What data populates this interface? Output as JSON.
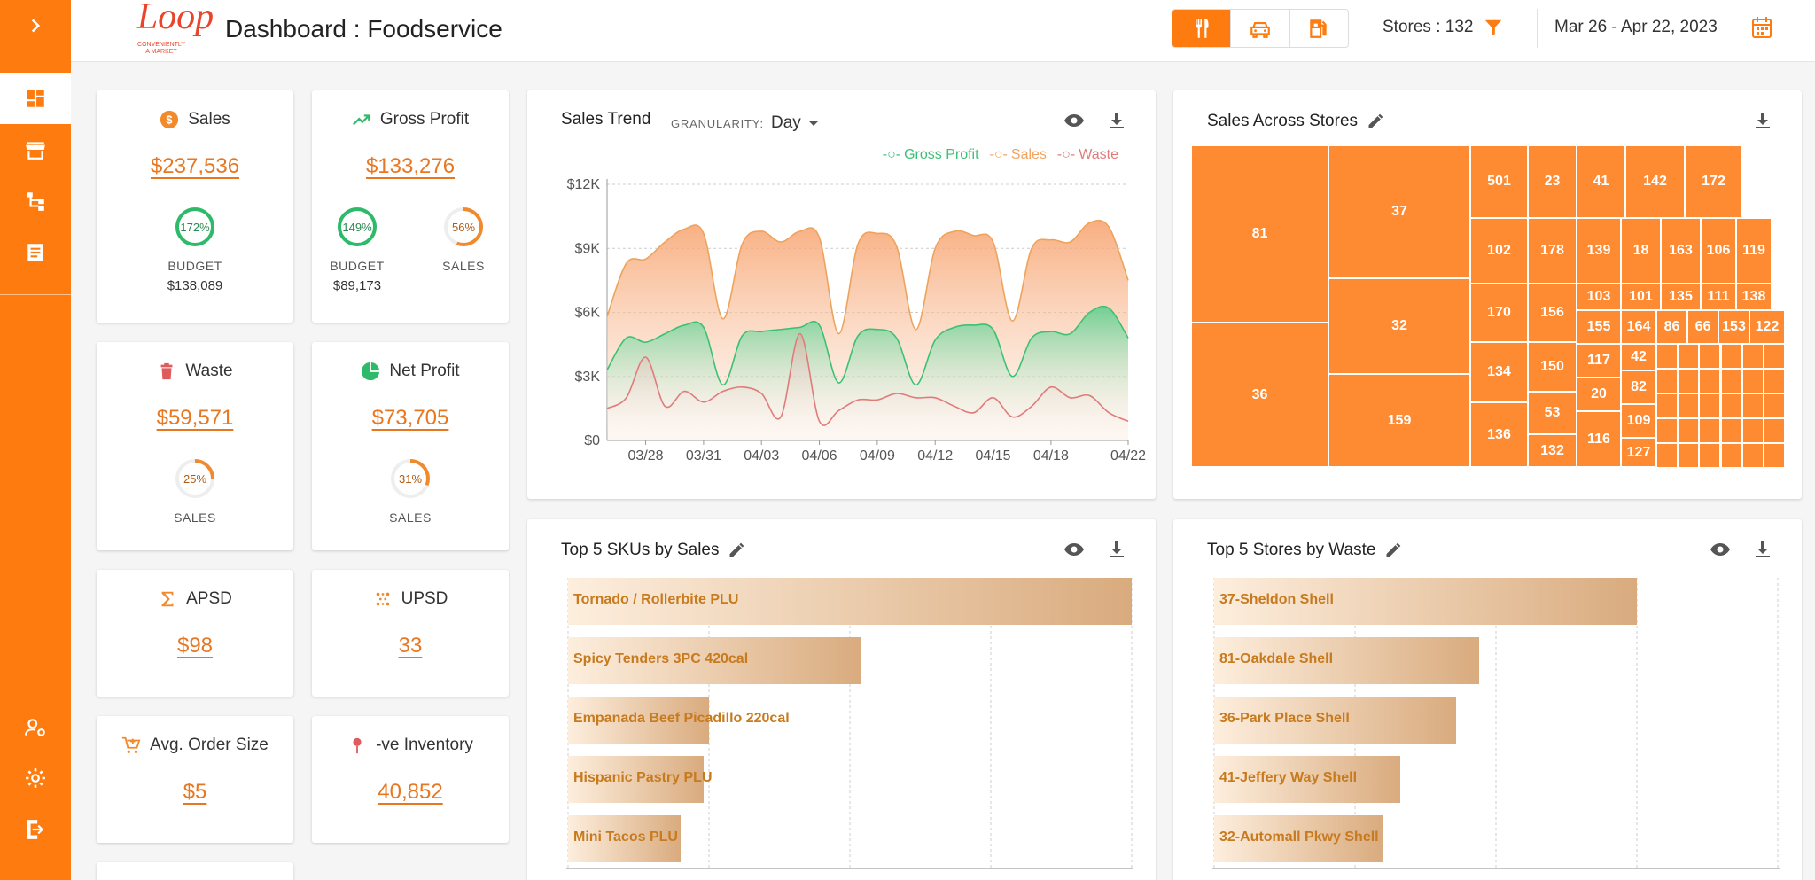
{
  "app": {
    "title": "Dashboard : Foodservice",
    "logo_text": "Loop",
    "logo_tagline_1": "CONVENIENTLY",
    "logo_tagline_2": "A MARKET"
  },
  "topbar": {
    "stores_label": "Stores : 132",
    "date_range": "Mar 26 - Apr 22, 2023",
    "modes": [
      "fork-knife-icon",
      "car-icon",
      "fuel-icon"
    ],
    "active_mode": "fork-knife-icon"
  },
  "colors": {
    "accent": "#fe7c0f",
    "value_orange": "#e87722",
    "gross_profit": "#3cc174",
    "sales": "#f2a35e",
    "waste": "#e07b7b",
    "bar_text": "#c77a1e"
  },
  "kpis": {
    "sales": {
      "title": "Sales",
      "value": "$237,536",
      "gauges": [
        {
          "pct": "172%",
          "fill": 1.0,
          "label": "BUDGET",
          "sub": "$138,089",
          "color": "#2dbb6a"
        }
      ]
    },
    "gross_profit": {
      "title": "Gross Profit",
      "value": "$133,276",
      "gauges": [
        {
          "pct": "149%",
          "fill": 1.0,
          "label": "BUDGET",
          "sub": "$89,173",
          "color": "#2dbb6a"
        },
        {
          "pct": "56%",
          "fill": 0.56,
          "label": "SALES",
          "sub": "",
          "color": "#f08a2c"
        }
      ]
    },
    "waste": {
      "title": "Waste",
      "value": "$59,571",
      "gauges": [
        {
          "pct": "25%",
          "fill": 0.25,
          "label": "SALES",
          "sub": "",
          "color": "#f08a2c"
        }
      ]
    },
    "net_profit": {
      "title": "Net Profit",
      "value": "$73,705",
      "gauges": [
        {
          "pct": "31%",
          "fill": 0.31,
          "label": "SALES",
          "sub": "",
          "color": "#f08a2c"
        }
      ]
    },
    "apsd": {
      "title": "APSD",
      "value": "$98"
    },
    "upsd": {
      "title": "UPSD",
      "value": "33"
    },
    "avg_order": {
      "title": "Avg. Order Size",
      "value": "$5"
    },
    "neg_inventory": {
      "title": "-ve Inventory",
      "value": "40,852"
    }
  },
  "sales_trend": {
    "title": "Sales Trend",
    "granularity_label": "GRANULARITY:",
    "granularity_value": "Day"
  },
  "chart_data": [
    {
      "type": "area",
      "title": "Sales Trend",
      "x": [
        "03/26",
        "03/27",
        "03/28",
        "03/29",
        "03/30",
        "03/31",
        "04/01",
        "04/02",
        "04/03",
        "04/04",
        "04/05",
        "04/06",
        "04/07",
        "04/08",
        "04/09",
        "04/10",
        "04/11",
        "04/12",
        "04/13",
        "04/14",
        "04/15",
        "04/16",
        "04/17",
        "04/18",
        "04/19",
        "04/20",
        "04/21",
        "04/22"
      ],
      "x_ticks": [
        "03/28",
        "03/31",
        "04/03",
        "04/06",
        "04/09",
        "04/12",
        "04/15",
        "04/18",
        "04/22"
      ],
      "y_ticks": [
        "$0",
        "$3K",
        "$6K",
        "$9K",
        "$12K"
      ],
      "ylim": [
        0,
        12000
      ],
      "series": [
        {
          "name": "Gross Profit",
          "values": [
            3300,
            4800,
            4600,
            5000,
            5400,
            5300,
            2600,
            4900,
            5100,
            5200,
            5300,
            5400,
            2700,
            4900,
            5200,
            4800,
            2600,
            4700,
            5300,
            5400,
            5200,
            3000,
            4800,
            5100,
            5000,
            6000,
            6200,
            4800
          ]
        },
        {
          "name": "Sales",
          "values": [
            5800,
            8300,
            8500,
            9300,
            9900,
            9700,
            5700,
            9200,
            9800,
            9300,
            9800,
            9500,
            5000,
            9200,
            9700,
            9100,
            5200,
            9000,
            9800,
            9600,
            9300,
            5600,
            9000,
            9400,
            9300,
            10200,
            10000,
            7500
          ]
        },
        {
          "name": "Waste",
          "values": [
            1500,
            2000,
            3900,
            1600,
            2300,
            1800,
            2300,
            2500,
            2200,
            1100,
            5000,
            900,
            1400,
            1900,
            1900,
            2200,
            2000,
            2000,
            1600,
            1300,
            2000,
            1100,
            1600,
            2500,
            2000,
            2100,
            1300,
            900
          ]
        }
      ]
    },
    {
      "type": "bar",
      "title": "Top 5 SKUs by Sales",
      "categories": [
        "Tornado / Rollerbite PLU",
        "Spicy Tenders 3PC 420cal",
        "Empanada Beef Picadillo 220cal",
        "Hispanic Pastry PLU",
        "Mini Tacos PLU"
      ],
      "values": [
        1.0,
        0.52,
        0.25,
        0.24,
        0.2
      ]
    },
    {
      "type": "bar",
      "title": "Top 5 Stores by Waste",
      "categories": [
        "37-Sheldon Shell",
        "81-Oakdale Shell",
        "36-Park Place Shell",
        "41-Jeffery Way Shell",
        "32-Automall Pkwy Shell"
      ],
      "values": [
        0.75,
        0.47,
        0.43,
        0.33,
        0.3
      ]
    }
  ],
  "sales_across_stores": {
    "title": "Sales Across Stores",
    "cells": [
      "81",
      "36",
      "37",
      "32",
      "159",
      "501",
      "23",
      "41",
      "142",
      "172",
      "102",
      "178",
      "139",
      "18",
      "163",
      "106",
      "119",
      "170",
      "156",
      "103",
      "101",
      "135",
      "111",
      "138",
      "134",
      "150",
      "155",
      "164",
      "86",
      "66",
      "153",
      "122",
      "136",
      "53",
      "117",
      "42",
      "20",
      "82",
      "132",
      "116",
      "109",
      "127"
    ]
  },
  "top_skus": {
    "title": "Top 5 SKUs by Sales",
    "bars": [
      "Tornado / Rollerbite PLU",
      "Spicy Tenders 3PC 420cal",
      "Empanada Beef Picadillo 220cal",
      "Hispanic Pastry PLU",
      "Mini Tacos PLU"
    ]
  },
  "top_stores_waste": {
    "title": "Top 5 Stores by Waste",
    "bars": [
      "37-Sheldon Shell",
      "81-Oakdale Shell",
      "36-Park Place Shell",
      "41-Jeffery Way Shell",
      "32-Automall Pkwy Shell"
    ]
  }
}
